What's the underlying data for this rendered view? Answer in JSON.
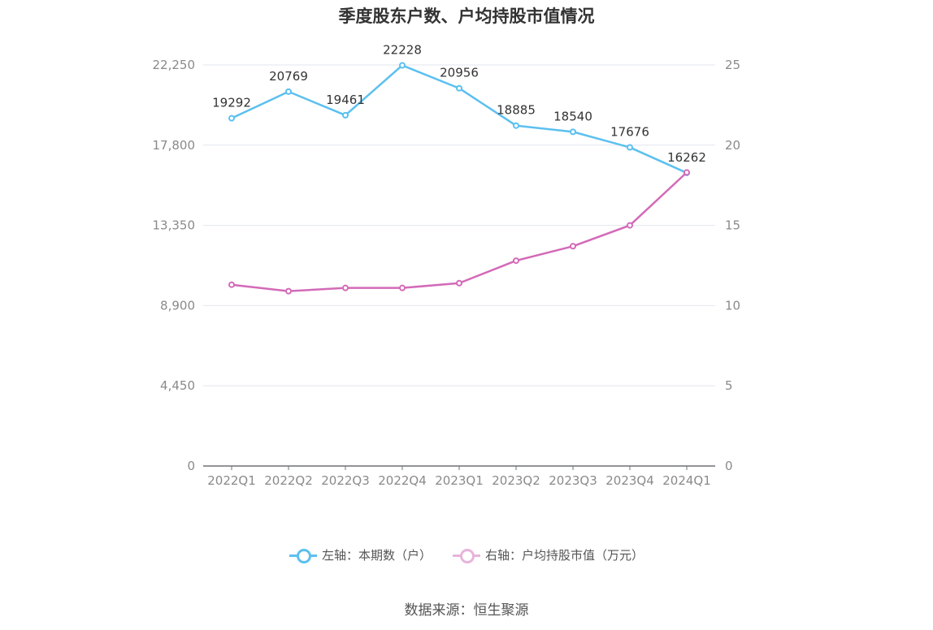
{
  "chart_data": {
    "type": "line",
    "title": "季度股东户数、户均持股市值情况",
    "categories": [
      "2022Q1",
      "2022Q2",
      "2022Q3",
      "2022Q4",
      "2023Q1",
      "2023Q2",
      "2023Q3",
      "2023Q4",
      "2024Q1"
    ],
    "series": [
      {
        "name": "左轴：本期数（户）",
        "axis": "left",
        "color": "#5bc0f0",
        "values": [
          19292,
          20769,
          19461,
          22228,
          20956,
          18885,
          18540,
          17676,
          16262
        ],
        "data_labels": [
          "19292",
          "20769",
          "19461",
          "22228",
          "20956",
          "18885",
          "18540",
          "17676",
          "16262"
        ]
      },
      {
        "name": "右轴：户均持股市值（万元）",
        "axis": "right",
        "color": "#d36ab8",
        "values": [
          11.3,
          10.9,
          11.1,
          11.1,
          11.4,
          12.8,
          13.7,
          15.0,
          18.3
        ]
      }
    ],
    "left_axis": {
      "ylim": [
        0,
        22250
      ],
      "ticks": [
        "0",
        "4,450",
        "8,900",
        "13,350",
        "17,800",
        "22,250"
      ]
    },
    "right_axis": {
      "ylim": [
        0,
        25
      ],
      "ticks": [
        "0",
        "5",
        "10",
        "15",
        "20",
        "25"
      ]
    },
    "grid": true,
    "legend_position": "bottom"
  },
  "source_label": "数据来源：恒生聚源"
}
